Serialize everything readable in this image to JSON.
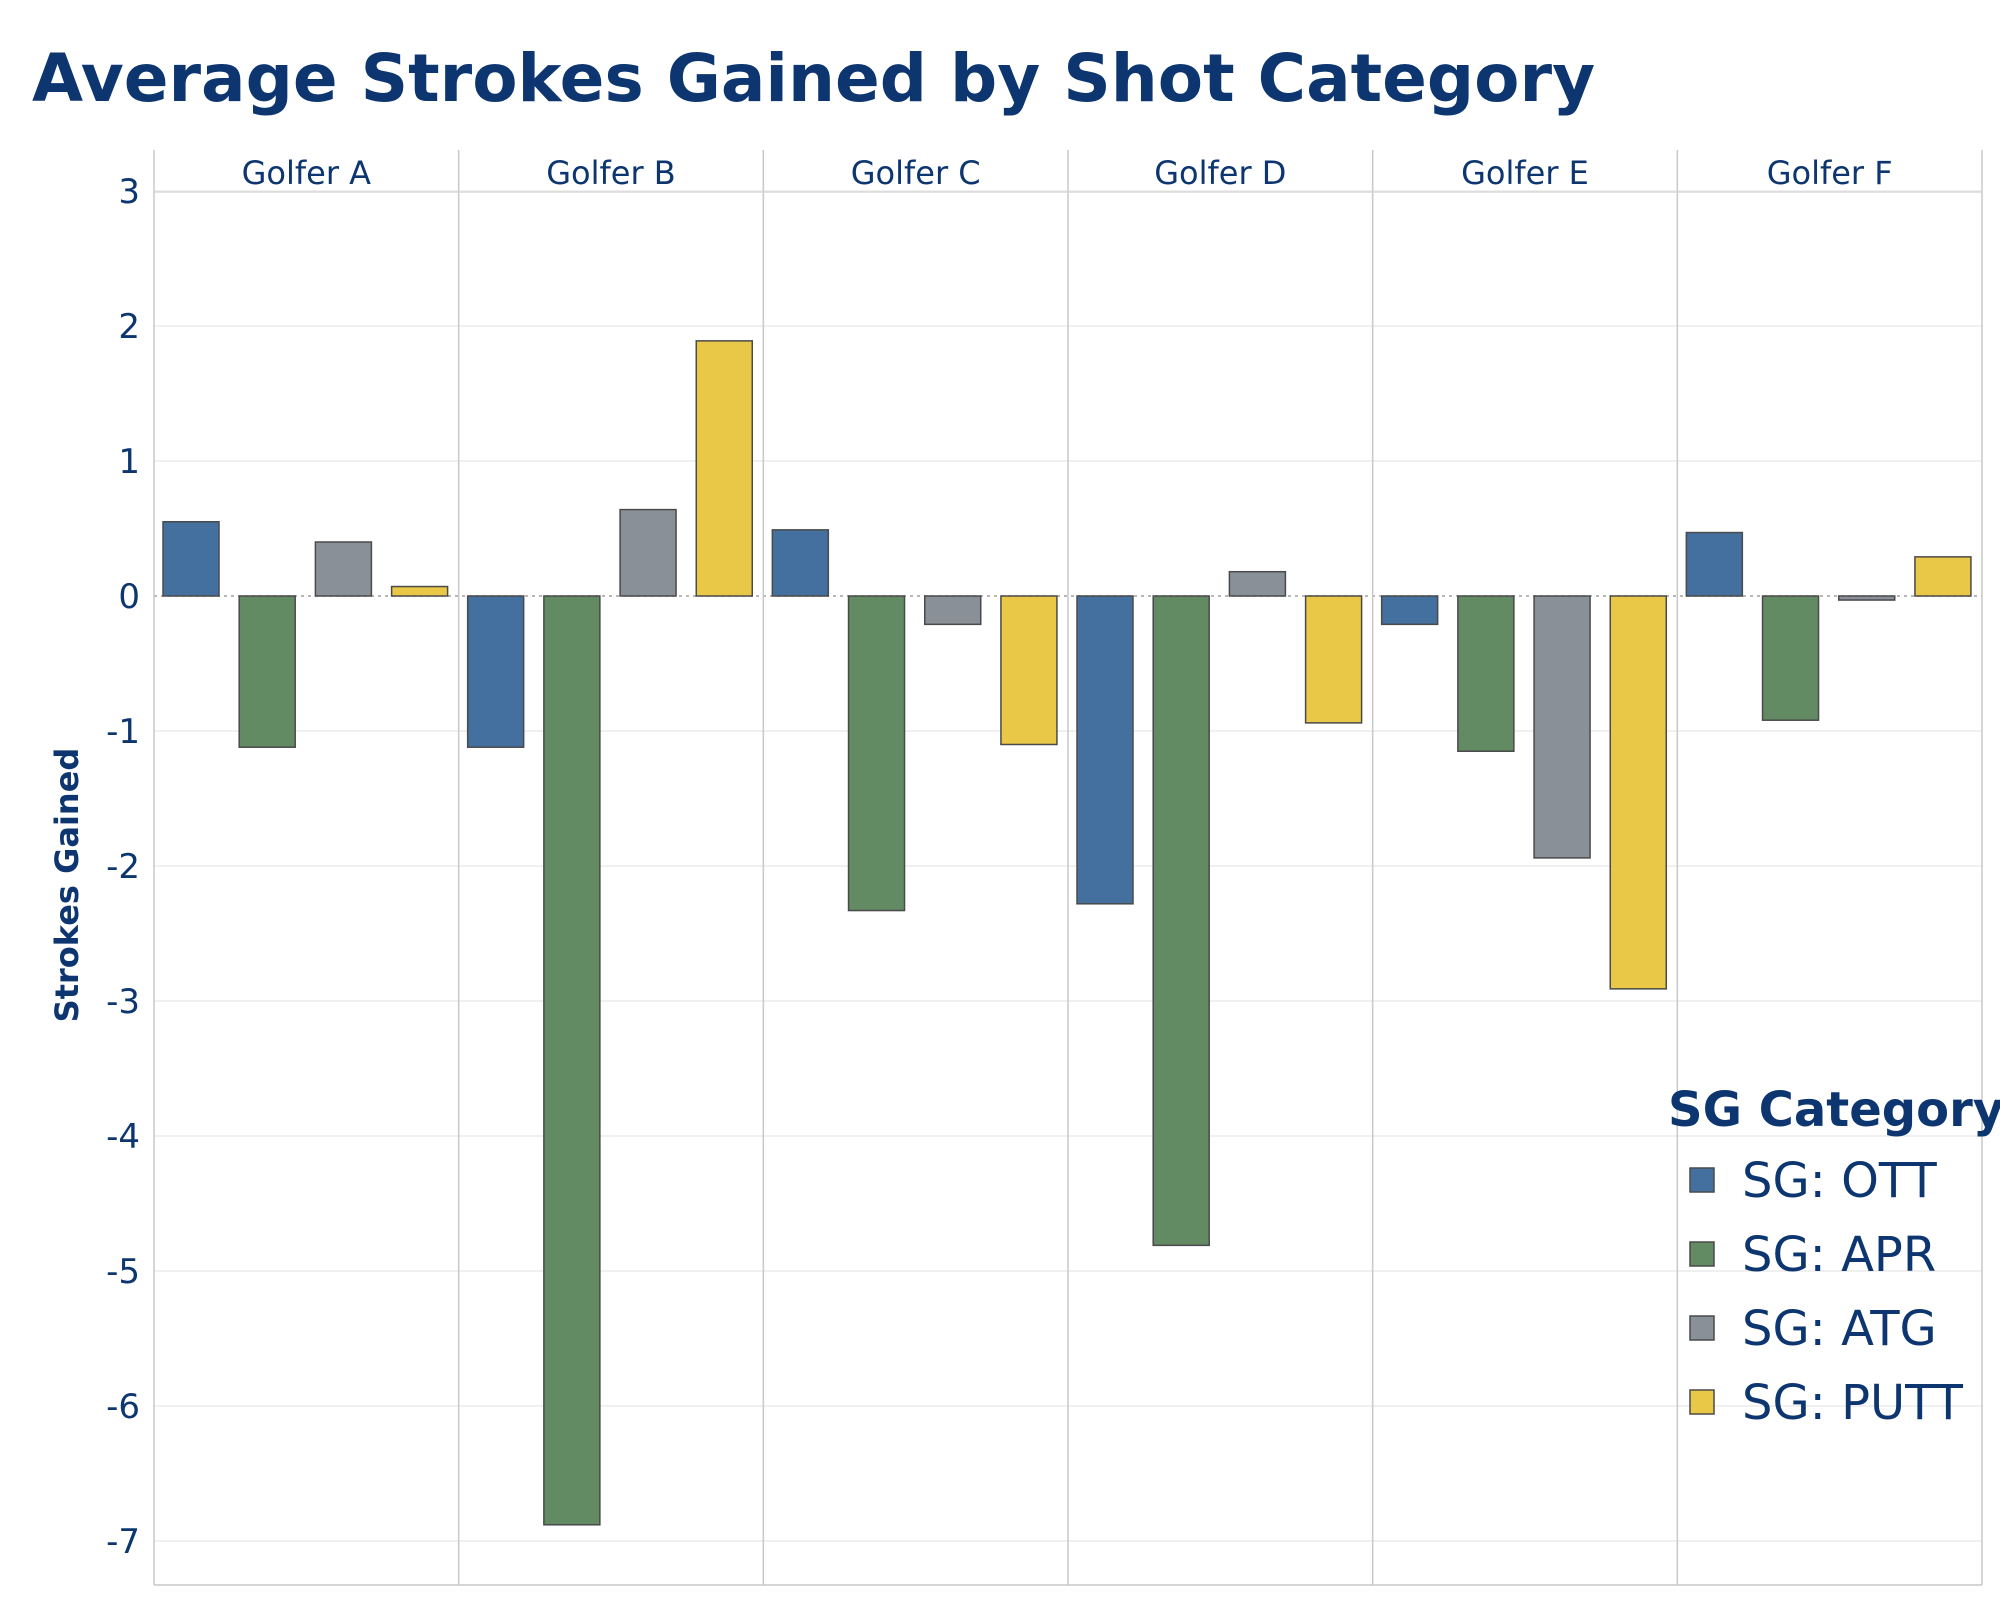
{
  "title": "Average Strokes Gained by Shot Category",
  "chart_data": {
    "type": "bar",
    "title": "Average Strokes Gained by Shot Category",
    "ylabel": "Strokes Gained",
    "xlabel": "",
    "ylim": [
      -7.3,
      3.0
    ],
    "yticks": [
      3,
      2,
      1,
      0,
      -1,
      -2,
      -3,
      -4,
      -5,
      -6,
      -7
    ],
    "panels": [
      "Golfer A",
      "Golfer B",
      "Golfer C",
      "Golfer D",
      "Golfer E",
      "Golfer F"
    ],
    "series": [
      {
        "name": "SG: OTT",
        "color": "#4470a0",
        "values": [
          0.55,
          -1.12,
          0.49,
          -2.28,
          -0.21,
          0.47
        ]
      },
      {
        "name": "SG: APR",
        "color": "#628b64",
        "values": [
          -1.12,
          -6.88,
          -2.33,
          -4.81,
          -1.15,
          -0.92
        ]
      },
      {
        "name": "SG: ATG",
        "color": "#8a9098",
        "values": [
          0.4,
          0.64,
          -0.21,
          0.18,
          -1.94,
          -0.03
        ]
      },
      {
        "name": "SG: PUTT",
        "color": "#e9c847",
        "values": [
          0.07,
          1.89,
          -1.1,
          -0.94,
          -2.91,
          0.29
        ]
      }
    ],
    "legend": {
      "title": "SG Category",
      "position": "bottom-right"
    },
    "grid": true
  }
}
